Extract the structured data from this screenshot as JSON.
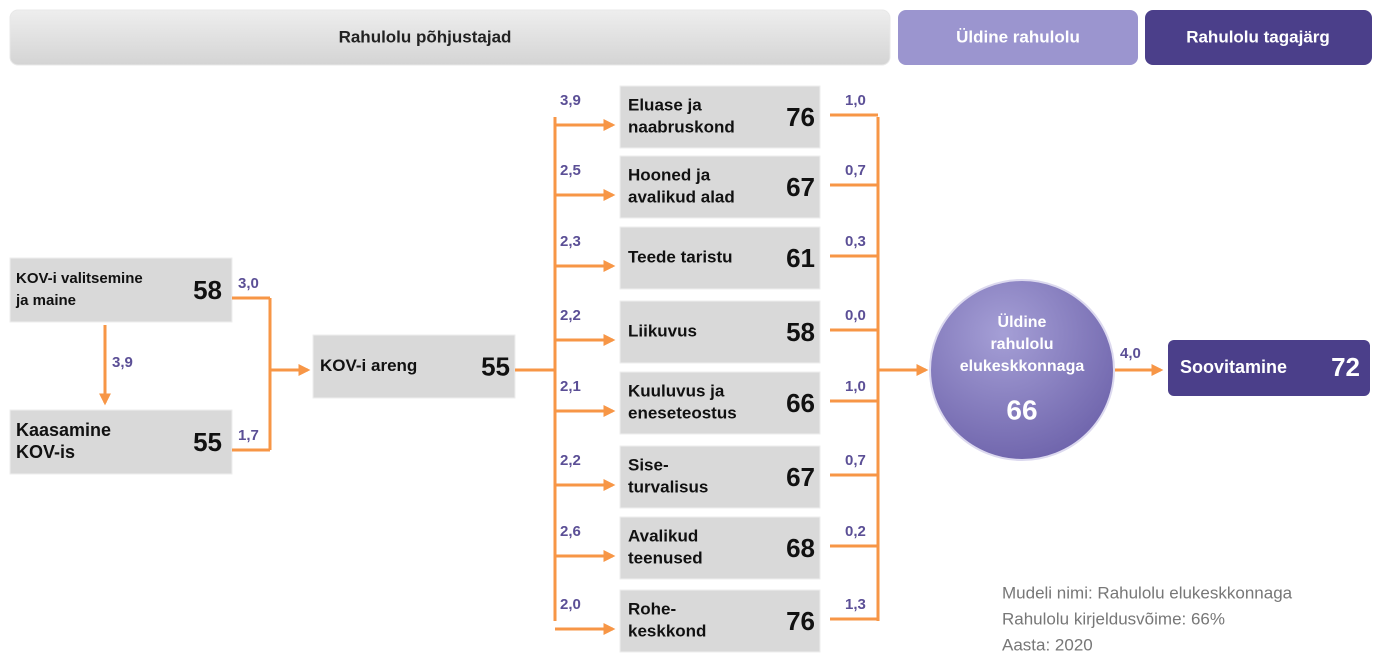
{
  "header": {
    "causes": "Rahulolu põhjustajad",
    "overall": "Üldine rahulolu",
    "consequence": "Rahulolu tagajärg"
  },
  "inputs": [
    {
      "label": [
        "KOV-i valitsemine",
        "ja maine"
      ],
      "score": "58",
      "weight": "3,0"
    },
    {
      "label": [
        "Kaasamine",
        "KOV-is"
      ],
      "score": "55",
      "weight": "1,7"
    }
  ],
  "input_link": "3,9",
  "hub": {
    "label": [
      "KOV-i areng"
    ],
    "score": "55"
  },
  "drivers": [
    {
      "label": [
        "Eluase ja",
        "naabruskond"
      ],
      "score": "76",
      "in_weight": "3,9",
      "out_weight": "1,0"
    },
    {
      "label": [
        "Hooned ja",
        "avalikud alad"
      ],
      "score": "67",
      "in_weight": "2,5",
      "out_weight": "0,7"
    },
    {
      "label": [
        "Teede taristu"
      ],
      "score": "61",
      "in_weight": "2,3",
      "out_weight": "0,3"
    },
    {
      "label": [
        "Liikuvus"
      ],
      "score": "58",
      "in_weight": "2,2",
      "out_weight": "0,0"
    },
    {
      "label": [
        "Kuuluvus ja",
        "eneseteostus"
      ],
      "score": "66",
      "in_weight": "2,1",
      "out_weight": "1,0"
    },
    {
      "label": [
        "Sise-",
        "turvalisus"
      ],
      "score": "67",
      "in_weight": "2,2",
      "out_weight": "0,7"
    },
    {
      "label": [
        "Avalikud",
        "teenused"
      ],
      "score": "68",
      "in_weight": "2,6",
      "out_weight": "0,2"
    },
    {
      "label": [
        "Rohe-",
        "keskkond"
      ],
      "score": "76",
      "in_weight": "2,0",
      "out_weight": "1,3"
    }
  ],
  "outcome": {
    "label": [
      "Üldine",
      "rahulolu",
      "elukeskkonnaga"
    ],
    "score": "66"
  },
  "outcome_weight": "4,0",
  "result": {
    "label": [
      "Soovitamine"
    ],
    "score": "72"
  },
  "notes": [
    "Mudeli nimi: Rahulolu elukeskkonnaga",
    "Rahulolu kirjeldusvõime: 66%",
    "Aasta: 2020"
  ]
}
